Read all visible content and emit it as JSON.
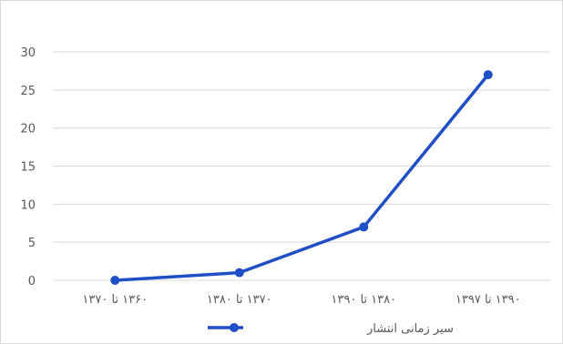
{
  "chart_data": {
    "type": "line",
    "categories": [
      "۱۳۶۰ تا ۱۳۷۰",
      "۱۳۷۰ تا ۱۳۸۰",
      "۱۳۸۰ تا ۱۳۹۰",
      "۱۳۹۰ تا ۱۳۹۷"
    ],
    "series": [
      {
        "name": "سیر زمانی انتشار",
        "values": [
          0,
          1,
          7,
          27
        ],
        "color": "#1f4fc4"
      }
    ],
    "ylim": [
      0,
      30
    ],
    "yticks": [
      "0",
      "5",
      "10",
      "15",
      "20",
      "25",
      "30"
    ],
    "grid": true,
    "legend_position": "bottom"
  }
}
